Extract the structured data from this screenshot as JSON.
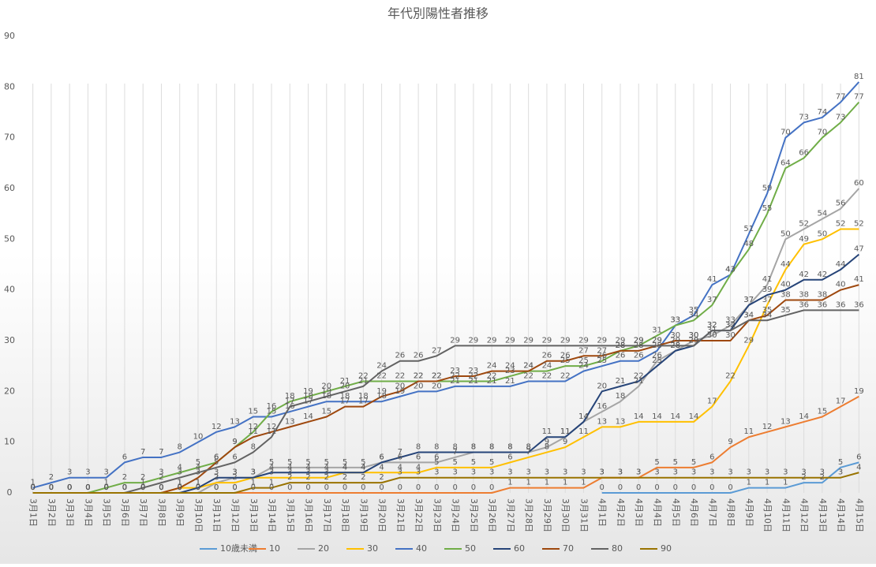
{
  "chart_data": {
    "type": "line",
    "title": "年代別陽性者推移",
    "categories": [
      "3月1日",
      "3月2日",
      "3月3日",
      "3月4日",
      "3月5日",
      "3月6日",
      "3月7日",
      "3月8日",
      "3月9日",
      "3月10日",
      "3月11日",
      "3月12日",
      "3月13日",
      "3月14日",
      "3月15日",
      "3月16日",
      "3月17日",
      "3月18日",
      "3月19日",
      "3月20日",
      "3月21日",
      "3月22日",
      "3月23日",
      "3月24日",
      "3月25日",
      "3月26日",
      "3月27日",
      "3月28日",
      "3月29日",
      "3月30日",
      "3月31日",
      "4月1日",
      "4月2日",
      "4月3日",
      "4月4日",
      "4月5日",
      "4月6日",
      "4月7日",
      "4月8日",
      "4月9日",
      "4月10日",
      "4月11日",
      "4月12日",
      "4月13日",
      "4月14日",
      "4月15日"
    ],
    "ylim": [
      0,
      90
    ],
    "yticks": [
      0,
      10,
      20,
      30,
      40,
      50,
      60,
      70,
      80,
      90
    ],
    "data_labels": true,
    "series": [
      {
        "name": "10歳未満",
        "color": "#5b9bd5",
        "values": [
          null,
          null,
          null,
          null,
          null,
          null,
          null,
          null,
          null,
          null,
          null,
          null,
          null,
          null,
          null,
          null,
          null,
          null,
          null,
          null,
          null,
          null,
          null,
          null,
          null,
          null,
          null,
          null,
          null,
          null,
          null,
          0,
          0,
          0,
          0,
          0,
          0,
          0,
          0,
          1,
          1,
          1,
          2,
          2,
          5,
          6
        ]
      },
      {
        "name": "10",
        "color": "#ed7d31",
        "values": [
          0,
          0,
          0,
          0,
          0,
          0,
          0,
          0,
          0,
          0,
          0,
          0,
          0,
          0,
          0,
          0,
          0,
          0,
          0,
          0,
          0,
          0,
          0,
          0,
          0,
          0,
          1,
          1,
          1,
          1,
          1,
          3,
          3,
          3,
          5,
          5,
          5,
          6,
          9,
          11,
          12,
          13,
          14,
          15,
          17,
          19
        ]
      },
      {
        "name": "20",
        "color": "#a5a5a5",
        "values": [
          0,
          0,
          0,
          0,
          0,
          0,
          0,
          0,
          0,
          0,
          2,
          3,
          3,
          5,
          5,
          5,
          5,
          5,
          5,
          6,
          6,
          6,
          6,
          7,
          8,
          8,
          8,
          8,
          9,
          11,
          14,
          16,
          18,
          21,
          26,
          28,
          30,
          31,
          33,
          37,
          41,
          50,
          52,
          54,
          56,
          60
        ]
      },
      {
        "name": "30",
        "color": "#ffc000",
        "values": [
          0,
          0,
          0,
          0,
          0,
          0,
          0,
          0,
          1,
          1,
          2,
          2,
          3,
          3,
          3,
          3,
          3,
          4,
          4,
          4,
          4,
          4,
          5,
          5,
          5,
          5,
          6,
          7,
          8,
          9,
          11,
          13,
          13,
          14,
          14,
          14,
          14,
          17,
          22,
          29,
          37,
          44,
          49,
          50,
          52,
          52
        ]
      },
      {
        "name": "40",
        "color": "#4472c4",
        "values": [
          1,
          2,
          3,
          3,
          3,
          6,
          7,
          7,
          8,
          10,
          12,
          13,
          15,
          15,
          16,
          17,
          18,
          18,
          18,
          18,
          19,
          20,
          20,
          21,
          21,
          21,
          21,
          22,
          22,
          22,
          24,
          25,
          26,
          26,
          28,
          33,
          35,
          41,
          43,
          51,
          59,
          70,
          73,
          74,
          77,
          81
        ]
      },
      {
        "name": "50",
        "color": "#70ad47",
        "values": [
          0,
          0,
          0,
          0,
          1,
          2,
          2,
          3,
          4,
          5,
          6,
          9,
          12,
          16,
          18,
          19,
          20,
          21,
          22,
          22,
          22,
          22,
          22,
          22,
          22,
          22,
          23,
          24,
          24,
          25,
          25,
          26,
          28,
          29,
          31,
          33,
          34,
          37,
          43,
          48,
          55,
          64,
          66,
          70,
          73,
          77
        ]
      },
      {
        "name": "60",
        "color": "#264478",
        "values": [
          0,
          0,
          0,
          0,
          0,
          0,
          0,
          0,
          0,
          1,
          3,
          3,
          3,
          4,
          4,
          4,
          4,
          4,
          4,
          6,
          7,
          8,
          8,
          8,
          8,
          8,
          8,
          8,
          11,
          11,
          14,
          20,
          21,
          22,
          25,
          28,
          29,
          32,
          32,
          37,
          39,
          40,
          42,
          42,
          44,
          47
        ]
      },
      {
        "name": "70",
        "color": "#9e480e",
        "values": [
          0,
          0,
          0,
          0,
          0,
          0,
          0,
          0,
          1,
          3,
          6,
          9,
          11,
          12,
          13,
          14,
          15,
          17,
          17,
          19,
          20,
          22,
          22,
          23,
          23,
          24,
          24,
          24,
          26,
          26,
          27,
          27,
          28,
          28,
          29,
          30,
          30,
          30,
          30,
          34,
          35,
          38,
          38,
          38,
          40,
          41
        ]
      },
      {
        "name": "80",
        "color": "#636363",
        "values": [
          0,
          0,
          0,
          0,
          0,
          0,
          1,
          2,
          3,
          4,
          5,
          6,
          8,
          11,
          17,
          18,
          19,
          20,
          21,
          24,
          26,
          26,
          27,
          29,
          29,
          29,
          29,
          29,
          29,
          29,
          29,
          29,
          29,
          29,
          29,
          29,
          29,
          32,
          32,
          34,
          34,
          35,
          36,
          36,
          36,
          36
        ]
      },
      {
        "name": "90",
        "color": "#997300",
        "values": [
          0,
          0,
          0,
          0,
          0,
          0,
          0,
          0,
          0,
          0,
          0,
          0,
          1,
          1,
          2,
          2,
          2,
          2,
          2,
          2,
          3,
          3,
          3,
          3,
          3,
          3,
          3,
          3,
          3,
          3,
          3,
          3,
          3,
          3,
          3,
          3,
          3,
          3,
          3,
          3,
          3,
          3,
          3,
          3,
          3,
          4
        ]
      }
    ]
  }
}
